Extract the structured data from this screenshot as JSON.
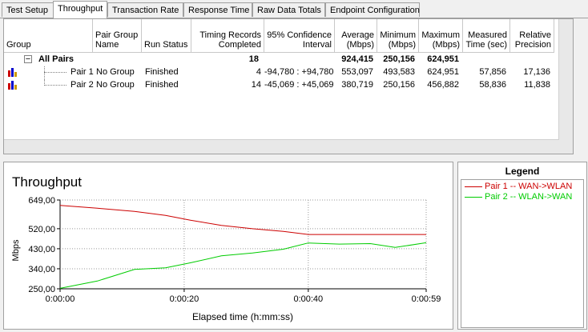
{
  "tabs": [
    {
      "label": "Test Setup",
      "active": false
    },
    {
      "label": "Throughput",
      "active": true
    },
    {
      "label": "Transaction Rate",
      "active": false
    },
    {
      "label": "Response Time",
      "active": false
    },
    {
      "label": "Raw Data Totals",
      "active": false
    },
    {
      "label": "Endpoint Configuration",
      "active": false
    }
  ],
  "table": {
    "columns": [
      [
        "Group"
      ],
      [
        "Pair Group",
        "Name"
      ],
      [
        "Run Status"
      ],
      [
        "Timing Records",
        "Completed"
      ],
      [
        "95% Confidence",
        "Interval"
      ],
      [
        "Average",
        "(Mbps)"
      ],
      [
        "Minimum",
        "(Mbps)"
      ],
      [
        "Maximum",
        "(Mbps)"
      ],
      [
        "Measured",
        "Time (sec)"
      ],
      [
        "Relative",
        "Precision"
      ]
    ],
    "summary": {
      "expander": "−",
      "label": "All Pairs",
      "records": "18",
      "average": "924,415",
      "minimum": "250,156",
      "maximum": "624,951"
    },
    "rows": [
      {
        "pair": "Pair 1",
        "group": "No Group",
        "status": "Finished",
        "records": "4",
        "ci": "-94,780 : +94,780",
        "average": "553,097",
        "minimum": "493,583",
        "maximum": "624,951",
        "time": "57,856",
        "precision": "17,136"
      },
      {
        "pair": "Pair 2",
        "group": "No Group",
        "status": "Finished",
        "records": "14",
        "ci": "-45,069 : +45,069",
        "average": "380,719",
        "minimum": "250,156",
        "maximum": "456,882",
        "time": "58,836",
        "precision": "11,838"
      }
    ]
  },
  "legend": {
    "title": "Legend",
    "items": [
      {
        "label": "Pair 1 -- WAN->WLAN",
        "color": "#cc0000"
      },
      {
        "label": "Pair 2 -- WLAN->WAN",
        "color": "#00cc00"
      }
    ]
  },
  "chart_data": {
    "type": "line",
    "title": "Throughput",
    "xlabel": "Elapsed time (h:mm:ss)",
    "ylabel": "Mbps",
    "ylim": [
      250,
      649
    ],
    "yticks": [
      "649,00",
      "520,00",
      "430,00",
      "340,00",
      "250,00"
    ],
    "ytick_values": [
      649,
      520,
      430,
      340,
      250
    ],
    "xlim": [
      0,
      59
    ],
    "xticks": [
      "0:00:00",
      "0:00:20",
      "0:00:40",
      "0:00:59"
    ],
    "xtick_values": [
      0,
      20,
      40,
      59
    ],
    "grid": true,
    "series": [
      {
        "name": "Pair 1 -- WAN->WLAN",
        "color": "#cc0000",
        "x": [
          0,
          6,
          12,
          17,
          21,
          26,
          31,
          36,
          40,
          45,
          50,
          54,
          59
        ],
        "y": [
          625,
          612,
          598,
          580,
          558,
          535,
          520,
          508,
          494,
          494,
          494,
          494,
          494
        ]
      },
      {
        "name": "Pair 2 -- WLAN->WAN",
        "color": "#00cc00",
        "x": [
          0,
          6,
          12,
          17,
          21,
          26,
          31,
          36,
          40,
          45,
          50,
          54,
          59
        ],
        "y": [
          252,
          285,
          337,
          344,
          367,
          398,
          411,
          428,
          456,
          451,
          453,
          436,
          457
        ]
      }
    ]
  }
}
